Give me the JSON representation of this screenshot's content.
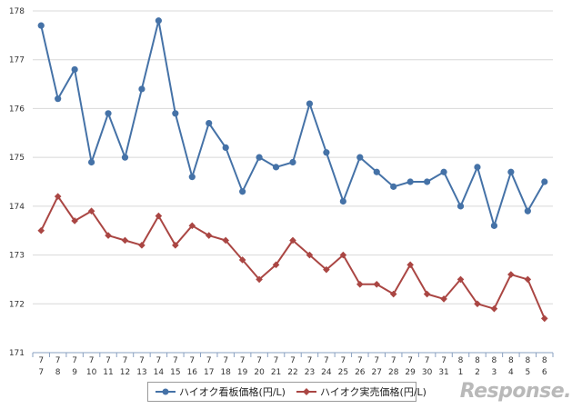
{
  "chart_data": {
    "type": "line",
    "categories": [
      [
        "7",
        "7"
      ],
      [
        "7",
        "8"
      ],
      [
        "7",
        "9"
      ],
      [
        "7",
        "10"
      ],
      [
        "7",
        "11"
      ],
      [
        "7",
        "12"
      ],
      [
        "7",
        "13"
      ],
      [
        "7",
        "14"
      ],
      [
        "7",
        "15"
      ],
      [
        "7",
        "16"
      ],
      [
        "7",
        "17"
      ],
      [
        "7",
        "18"
      ],
      [
        "7",
        "19"
      ],
      [
        "7",
        "20"
      ],
      [
        "7",
        "21"
      ],
      [
        "7",
        "22"
      ],
      [
        "7",
        "23"
      ],
      [
        "7",
        "24"
      ],
      [
        "7",
        "25"
      ],
      [
        "7",
        "26"
      ],
      [
        "7",
        "27"
      ],
      [
        "7",
        "28"
      ],
      [
        "7",
        "29"
      ],
      [
        "7",
        "30"
      ],
      [
        "7",
        "31"
      ],
      [
        "8",
        "1"
      ],
      [
        "8",
        "2"
      ],
      [
        "8",
        "3"
      ],
      [
        "8",
        "4"
      ],
      [
        "8",
        "5"
      ],
      [
        "8",
        "6"
      ]
    ],
    "ylim": [
      171,
      178
    ],
    "yticks": [
      "171",
      "172",
      "173",
      "174",
      "175",
      "176",
      "177",
      "178"
    ],
    "grid": true,
    "legend_position": "bottom",
    "series": [
      {
        "name": "ハイオク看板価格(円/L)",
        "color": "#4572a7",
        "marker": "circle",
        "values": [
          177.7,
          176.2,
          176.8,
          174.9,
          175.9,
          175.0,
          176.4,
          177.8,
          175.9,
          174.6,
          175.7,
          175.2,
          174.3,
          175.0,
          174.8,
          174.9,
          176.1,
          175.1,
          174.1,
          175.0,
          174.7,
          174.4,
          174.5,
          174.5,
          174.7,
          174.0,
          174.8,
          173.6,
          174.7,
          173.9,
          174.5
        ]
      },
      {
        "name": "ハイオク実売価格(円/L)",
        "color": "#aa4643",
        "marker": "diamond",
        "values": [
          173.5,
          174.2,
          173.7,
          173.9,
          173.4,
          173.3,
          173.2,
          173.8,
          173.2,
          173.6,
          173.4,
          173.3,
          172.9,
          172.5,
          172.8,
          173.3,
          173.0,
          172.7,
          173.0,
          172.4,
          172.4,
          172.2,
          172.8,
          172.2,
          172.1,
          172.5,
          172.0,
          171.9,
          172.6,
          172.5,
          171.7
        ]
      }
    ]
  },
  "logo_text": "Response."
}
